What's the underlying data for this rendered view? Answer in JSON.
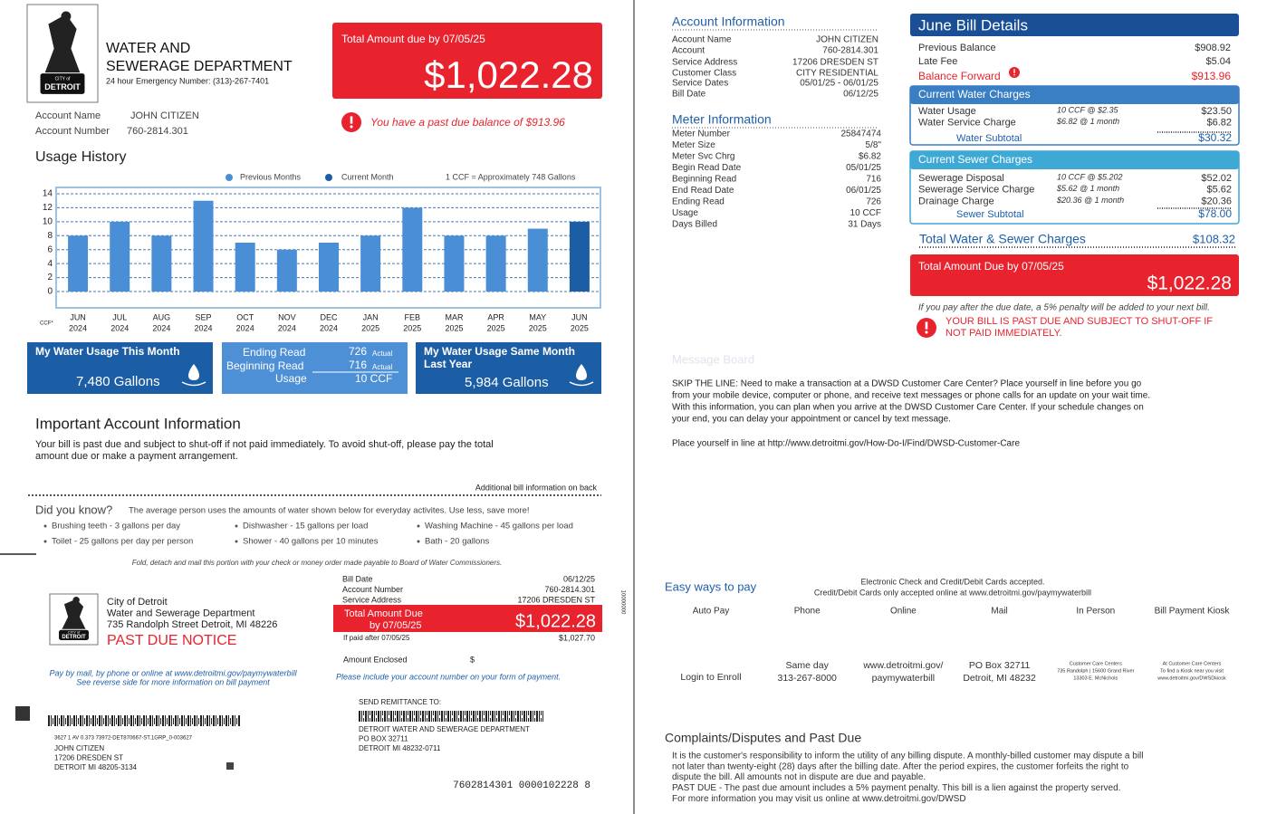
{
  "header": {
    "department_line1": "WATER AND",
    "department_line2": "SEWERAGE DEPARTMENT",
    "emergency": "24 hour Emergency Number: (313)-267-7401",
    "logo_top": "CITY of",
    "logo_bottom": "DETROIT"
  },
  "account": {
    "name_label": "Account Name",
    "name": "JOHN CITIZEN",
    "number_label": "Account Number",
    "number": "760-2814.301"
  },
  "total_box": {
    "label": "Total Amount due by 07/05/25",
    "amount": "$1,022.28",
    "past_due": "You have a past due balance of $913.96"
  },
  "chart_data": {
    "type": "bar",
    "title": "Usage History",
    "note": "1 CCF = Approximately 748 Gallons",
    "y_label": "CCF*",
    "categories": [
      "JUN",
      "JUL",
      "AUG",
      "SEP",
      "OCT",
      "NOV",
      "DEC",
      "JAN",
      "FEB",
      "MAR",
      "APR",
      "MAY",
      "JUN"
    ],
    "category_years": [
      "2024",
      "2024",
      "2024",
      "2024",
      "2024",
      "2024",
      "2024",
      "2025",
      "2025",
      "2025",
      "2025",
      "2025",
      "2025"
    ],
    "series": [
      {
        "name": "Previous Months",
        "color": "#4a8fd6",
        "values": [
          8,
          10,
          8,
          13,
          7,
          6,
          7,
          8,
          12,
          8,
          8,
          9,
          null
        ]
      },
      {
        "name": "Current Month",
        "color": "#1c5ea6",
        "values": [
          null,
          null,
          null,
          null,
          null,
          null,
          null,
          null,
          null,
          null,
          null,
          null,
          10
        ]
      }
    ],
    "ylim": [
      0,
      14
    ],
    "yticks": [
      0,
      2,
      4,
      6,
      8,
      10,
      12,
      14
    ],
    "grid": true
  },
  "usage_boxes": {
    "this_month_title": "My Water Usage This Month",
    "this_month_value": "7,480 Gallons",
    "ending_read_label": "Ending Read",
    "ending_read": "726",
    "beginning_read_label": "Beginning Read",
    "beginning_read": "716",
    "read_type": "Actual",
    "usage_label": "Usage",
    "usage": "10 CCF",
    "last_year_title_line1": "My Water Usage Same Month",
    "last_year_title_line2": "Last Year",
    "last_year_value": "5,984 Gallons"
  },
  "important": {
    "title": "Important Account Information",
    "lines": [
      "Your bill is past due and subject to shut-off if not paid immediately.  To avoid shut-off, please pay the total",
      "amount due or make a payment arrangement."
    ],
    "additional": "Additional bill information on back"
  },
  "did_you_know": {
    "title": "Did you know?",
    "intro": "The average person uses the amounts of water shown below for everyday activites.  Use less, save more!",
    "items": [
      "Brushing teeth - 3 gallons per day",
      "Dishwasher - 15 gallons per load",
      "Washing Machine - 45 gallons per load",
      "Toilet - 25 gallons per day per person",
      "Shower - 40 gallons per 10 minutes",
      "Bath - 20 gallons"
    ]
  },
  "fold_note": "Fold, detach and mail this portion with your check or money order made payable to Board of Water Commissioners.",
  "stub": {
    "org_lines": [
      "City of Detroit",
      "Water and Sewerage Department",
      "735 Randolph Street Detroit, MI 48226"
    ],
    "notice": "PAST DUE NOTICE",
    "rows": [
      {
        "label": "Bill Date",
        "value": "06/12/25"
      },
      {
        "label": "Account Number",
        "value": "760-2814.301"
      },
      {
        "label": "Service Address",
        "value": "17206 DRESDEN ST"
      }
    ],
    "due_label": "Total Amount Due",
    "due_date": "by 07/05/25",
    "due_amount": "$1,022.28",
    "late_label": "If paid after 07/05/25",
    "late_amount": "$1,027.70",
    "enclosed_label": "Amount Enclosed",
    "enclosed_sign": "$",
    "pay_note_lines": [
      "Pay by mail, by phone or online at www.detroitmi.gov/paymywaterbill",
      "See reverse side for more information on bill payment"
    ],
    "include_note": "Please include your account number on your form of payment.",
    "side_code": "10000000",
    "remit_title": "SEND REMITTANCE TO:",
    "remit_lines": [
      "DETROIT WATER AND SEWERAGE DEPARTMENT",
      "PO BOX 32711",
      "DETROIT  MI  48232-0711"
    ],
    "mail_code": "3627 1 AV 0.373  73972-DET870667-ST.1GRP_0-003627",
    "mail_lines": [
      "JOHN CITIZEN",
      "17206 DRESDEN ST",
      "DETROIT  MI  48205-3134"
    ],
    "scan_line": "7602814301 0000102228 8"
  },
  "account_info": {
    "title": "Account Information",
    "rows": [
      {
        "label": "Account Name",
        "value": "JOHN CITIZEN"
      },
      {
        "label": "Account",
        "value": "760-2814.301"
      },
      {
        "label": "Service Address",
        "value": "17206 DRESDEN ST"
      },
      {
        "label": "Customer Class",
        "value": "CITY RESIDENTIAL"
      },
      {
        "label": "Service Dates",
        "value": "05/01/25 - 06/01/25"
      },
      {
        "label": "Bill Date",
        "value": "06/12/25"
      }
    ]
  },
  "meter_info": {
    "title": "Meter Information",
    "rows": [
      {
        "label": "Meter Number",
        "value": "25847474"
      },
      {
        "label": "Meter Size",
        "value": "5/8\""
      },
      {
        "label": "Meter Svc Chrg",
        "value": "$6.82"
      },
      {
        "label": "Begin Read Date",
        "value": "05/01/25"
      },
      {
        "label": "Beginning Read",
        "value": "716"
      },
      {
        "label": "End Read Date",
        "value": "06/01/25"
      },
      {
        "label": "Ending Read",
        "value": "726"
      },
      {
        "label": "Usage",
        "value": "10 CCF"
      },
      {
        "label": "Days Billed",
        "value": "31 Days"
      }
    ]
  },
  "bill_details": {
    "title": "June Bill Details",
    "rows": [
      {
        "label": "Previous Balance",
        "value": "$908.92"
      },
      {
        "label": "Late Fee",
        "value": "$5.04"
      },
      {
        "label": "Balance Forward",
        "value": "$913.96"
      }
    ],
    "water": {
      "title": "Current Water Charges",
      "rows": [
        {
          "label": "Water Usage",
          "detail": "10 CCF @ $2.35",
          "value": "$23.50"
        },
        {
          "label": "Water Service Charge",
          "detail": "$6.82 @ 1 month",
          "value": "$6.82"
        }
      ],
      "subtotal_label": "Water Subtotal",
      "subtotal": "$30.32"
    },
    "sewer": {
      "title": "Current Sewer Charges",
      "rows": [
        {
          "label": "Sewerage Disposal",
          "detail": "10 CCF @ $5.202",
          "value": "$52.02"
        },
        {
          "label": "Sewerage Service Charge",
          "detail": "$5.62 @ 1 month",
          "value": "$5.62"
        },
        {
          "label": "Drainage Charge",
          "detail": "$20.36 @ 1 month",
          "value": "$20.36"
        }
      ],
      "subtotal_label": "Sewer Subtotal",
      "subtotal": "$78.00"
    },
    "total_label": "Total Water & Sewer Charges",
    "total": "$108.32",
    "due_label": "Total Amount Due by 07/05/25",
    "due_amount": "$1,022.28",
    "penalty": "If you pay after the due date, a 5% penalty will be added to your next bill.",
    "warning_lines": [
      "YOUR BILL IS PAST DUE AND SUBJECT TO SHUT-OFF IF",
      "NOT PAID IMMEDIATELY."
    ]
  },
  "message_board": {
    "title": "Message Board",
    "lines": [
      "SKIP THE LINE: Need to make a transaction at a DWSD Customer Care Center? Place yourself in line before you go",
      "from your mobile device, computer or phone, and receive text messages or phone calls for an update on your wait time.",
      "With this information, you can plan when you arrive at the DWSD Customer Care Center. If your schedule changes on",
      "your end, you can delay your appointment or cancel by text message."
    ],
    "link_line": "Place yourself in line at http://www.detroitmi.gov/How-Do-I/Find/DWSD-Customer-Care"
  },
  "payment": {
    "title": "Easy ways to pay",
    "notes": [
      "Electronic Check and Credit/Debit Cards accepted.",
      "Credit/Debit Cards only accepted online at www.detroitmi.gov/paymywaterbill"
    ],
    "methods": [
      {
        "name": "Auto Pay",
        "details": [
          "Login to Enroll"
        ]
      },
      {
        "name": "Phone",
        "details": [
          "Same day",
          "313-267-8000"
        ]
      },
      {
        "name": "Online",
        "details": [
          "www.detroitmi.gov/",
          "paymywaterbill"
        ]
      },
      {
        "name": "Mail",
        "details": [
          "PO Box 32711",
          "Detroit, MI 48232"
        ]
      },
      {
        "name": "In Person",
        "details": [
          "Customer Care Centers",
          "735 Randolph | 15600 Grand River",
          "13303 E. McNichols"
        ]
      },
      {
        "name": "Bill Payment Kiosk",
        "details": [
          "At Customer Care Centers",
          "To find a Kiosk near you visit",
          "www.detroitmi.gov/DWSDkiosk"
        ]
      }
    ]
  },
  "complaints": {
    "title": "Complaints/Disputes and Past Due",
    "lines": [
      "It is the customer's responsibility to inform the utility of any billing dispute.  A monthly-billed customer may dispute a bill",
      "not later than twenty-eight (28) days after the billing date.  After the period expires, the customer forfeits the right to",
      "dispute the bill.  All amounts not in dispute are due and payable.",
      "PAST DUE - The past due amount includes a 5% payment penalty.  This bill is a lien against the property served.",
      "For more information you may visit us online at www.detroitmi.gov/DWSD"
    ]
  }
}
